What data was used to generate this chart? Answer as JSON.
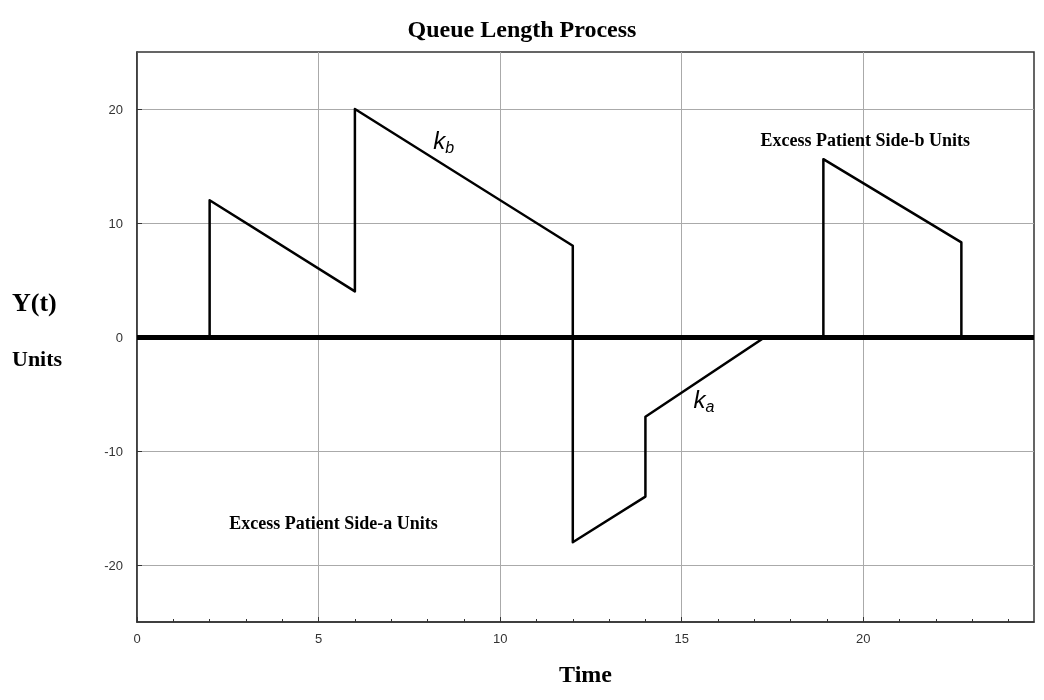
{
  "chart_data": {
    "type": "line",
    "title": "Queue Length Process",
    "xlabel": "Time",
    "ylabel": "Y(t)\nUnits",
    "x": [
      2,
      2,
      6,
      6,
      12,
      12,
      14,
      14,
      17.3,
      18.9,
      18.9,
      22.7,
      22.7
    ],
    "series": [
      {
        "color": "#000000",
        "values": [
          0,
          12,
          4,
          20,
          8,
          -18,
          -14,
          -7,
          0,
          0,
          15.6,
          8.3,
          0
        ]
      }
    ],
    "xlim": [
      0,
      24.7
    ],
    "ylim": [
      -25,
      25
    ],
    "xticks": [
      0,
      5,
      10,
      15,
      20
    ],
    "yticks": [
      -20,
      -10,
      0,
      10,
      20
    ],
    "grid": true,
    "marker": "none",
    "line_style": "solid",
    "ref_lines": [
      {
        "axis": "y",
        "value": 0,
        "label": null,
        "color": "#000000"
      }
    ],
    "annotations": [
      "k$_{b}$",
      "k$_{a}$",
      "Excess Patient Side-b Units",
      "Excess Patient Side-a Units"
    ]
  }
}
